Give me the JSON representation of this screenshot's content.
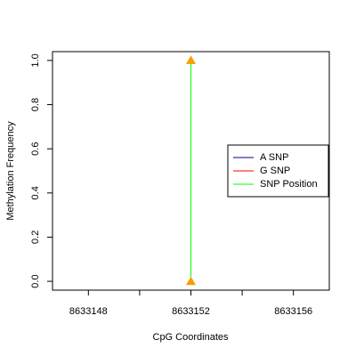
{
  "chart_data": {
    "type": "line",
    "xlabel": "CpG Coordinates",
    "ylabel": "Methylation Frequency",
    "xlim": [
      8633146.6,
      8633157.4
    ],
    "ylim": [
      -0.04,
      1.04
    ],
    "xticks": [
      8633148,
      8633152,
      8633156
    ],
    "xminor_ticks": [
      8633150,
      8633154
    ],
    "yticks": [
      {
        "value": 0,
        "label": "0.0"
      },
      0.2,
      0.4,
      0.6,
      0.8,
      {
        "value": 1,
        "label": "1.0"
      }
    ],
    "series": [
      {
        "name": "A SNP",
        "color": "#00008b",
        "x": [],
        "values": []
      },
      {
        "name": "G SNP",
        "color": "#ff0000",
        "x": [],
        "values": []
      },
      {
        "name": "SNP Position",
        "color": "#00ff00",
        "x": [
          8633152,
          8633152
        ],
        "values": [
          0,
          1
        ]
      }
    ],
    "markers": {
      "x": [
        8633152,
        8633152
      ],
      "values": [
        0,
        1
      ],
      "color": "#f5a000"
    },
    "legend_position": "right"
  }
}
